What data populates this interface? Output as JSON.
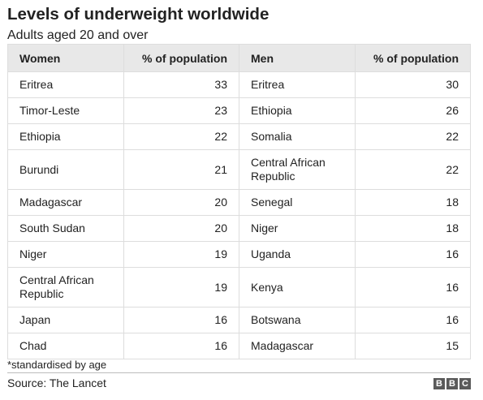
{
  "title": "Levels of underweight worldwide",
  "subtitle": "Adults aged 20 and over",
  "chart_data": {
    "type": "table",
    "columns": [
      "Women",
      "% of population",
      "Men",
      "% of population"
    ],
    "women": [
      {
        "country": "Eritrea",
        "value": 33
      },
      {
        "country": "Timor-Leste",
        "value": 23
      },
      {
        "country": "Ethiopia",
        "value": 22
      },
      {
        "country": "Burundi",
        "value": 21
      },
      {
        "country": "Madagascar",
        "value": 20
      },
      {
        "country": "South Sudan",
        "value": 20
      },
      {
        "country": "Niger",
        "value": 19
      },
      {
        "country": "Central African Republic",
        "value": 19
      },
      {
        "country": "Japan",
        "value": 16
      },
      {
        "country": "Chad",
        "value": 16
      }
    ],
    "men": [
      {
        "country": "Eritrea",
        "value": 30
      },
      {
        "country": "Ethiopia",
        "value": 26
      },
      {
        "country": "Somalia",
        "value": 22
      },
      {
        "country": "Central African Republic",
        "value": 22
      },
      {
        "country": "Senegal",
        "value": 18
      },
      {
        "country": "Niger",
        "value": 18
      },
      {
        "country": "Uganda",
        "value": 16
      },
      {
        "country": "Kenya",
        "value": 16
      },
      {
        "country": "Botswana",
        "value": 16
      },
      {
        "country": "Madagascar",
        "value": 15
      }
    ]
  },
  "footnote": "*standardised by age",
  "source": "Source: The Lancet",
  "logo": [
    "B",
    "B",
    "C"
  ]
}
